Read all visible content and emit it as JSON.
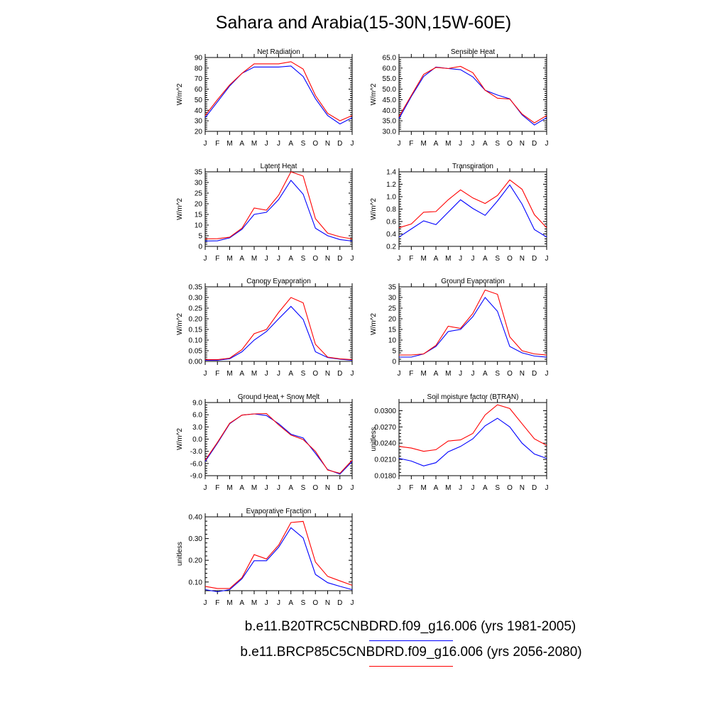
{
  "title": "Sahara and Arabia(15-30N,15W-60E)",
  "colors": {
    "series1": "#0000ff",
    "series2": "#ff0000",
    "axis": "#000000"
  },
  "legend": [
    {
      "label": "b.e11.B20TRC5CNBDRD.f09_g16.006 (yrs 1981-2005)",
      "color": "#0000ff"
    },
    {
      "label": "b.e11.BRCP85C5CNBDRD.f09_g16.006 (yrs 2056-2080)",
      "color": "#ff0000"
    }
  ],
  "chart_data": [
    {
      "type": "line",
      "title": "Net Radiation",
      "ylabel": "W/m^2",
      "categories": [
        "J",
        "F",
        "M",
        "A",
        "M",
        "J",
        "J",
        "A",
        "S",
        "O",
        "N",
        "D",
        "J"
      ],
      "ylim": [
        20,
        90
      ],
      "yticks": [
        "20",
        "30",
        "40",
        "50",
        "60",
        "70",
        "80",
        "90"
      ],
      "series": [
        {
          "values": [
            33,
            48,
            63,
            75,
            81,
            81,
            81,
            82,
            72,
            51,
            35,
            27,
            33
          ]
        },
        {
          "values": [
            35,
            50,
            64,
            75,
            84,
            84,
            84,
            86,
            79,
            54,
            37,
            30,
            35
          ]
        }
      ]
    },
    {
      "type": "line",
      "title": "Sensible Heat",
      "ylabel": "W/m^2",
      "categories": [
        "J",
        "F",
        "M",
        "A",
        "M",
        "J",
        "J",
        "A",
        "S",
        "O",
        "N",
        "D",
        "J"
      ],
      "ylim": [
        30,
        65
      ],
      "yticks": [
        "30.0",
        "35.0",
        "40.0",
        "45.0",
        "50.0",
        "55.0",
        "60.0",
        "65.0"
      ],
      "series": [
        {
          "values": [
            36.0,
            46.5,
            56.0,
            60.5,
            59.8,
            59.2,
            55.8,
            49.5,
            47.2,
            45.4,
            37.8,
            33.0,
            36.5
          ]
        },
        {
          "values": [
            37.0,
            47.0,
            57.0,
            60.3,
            59.8,
            60.8,
            57.8,
            49.5,
            45.7,
            45.3,
            38.2,
            34.0,
            37.5
          ]
        }
      ]
    },
    {
      "type": "line",
      "title": "Latent Heat",
      "ylabel": "W/m^2",
      "categories": [
        "J",
        "F",
        "M",
        "A",
        "M",
        "J",
        "J",
        "A",
        "S",
        "O",
        "N",
        "D",
        "J"
      ],
      "ylim": [
        0,
        35
      ],
      "yticks": [
        "0",
        "5",
        "10",
        "15",
        "20",
        "25",
        "30",
        "35"
      ],
      "series": [
        {
          "values": [
            2.5,
            2.6,
            4.0,
            8.0,
            15.0,
            16.0,
            22.0,
            31.0,
            24.5,
            8.5,
            5.0,
            3.2,
            2.5
          ]
        },
        {
          "values": [
            3.5,
            3.6,
            4.3,
            8.5,
            18.0,
            17.0,
            24.0,
            35.0,
            33.0,
            13.0,
            6.2,
            4.5,
            3.5
          ]
        }
      ]
    },
    {
      "type": "line",
      "title": "Transpiration",
      "ylabel": "W/m^2",
      "categories": [
        "J",
        "F",
        "M",
        "A",
        "M",
        "J",
        "J",
        "A",
        "S",
        "O",
        "N",
        "D",
        "J"
      ],
      "ylim": [
        0.2,
        1.4
      ],
      "yticks": [
        "0.2",
        "0.4",
        "0.6",
        "0.8",
        "1.0",
        "1.2",
        "1.4"
      ],
      "series": [
        {
          "values": [
            0.35,
            0.48,
            0.61,
            0.55,
            0.75,
            0.95,
            0.81,
            0.7,
            0.93,
            1.19,
            0.88,
            0.47,
            0.35
          ]
        },
        {
          "values": [
            0.5,
            0.56,
            0.75,
            0.76,
            0.95,
            1.11,
            0.98,
            0.89,
            1.02,
            1.27,
            1.12,
            0.71,
            0.5
          ]
        }
      ]
    },
    {
      "type": "line",
      "title": "Canopy Evaporation",
      "ylabel": "W/m^2",
      "categories": [
        "J",
        "F",
        "M",
        "A",
        "M",
        "J",
        "J",
        "A",
        "S",
        "O",
        "N",
        "D",
        "J"
      ],
      "ylim": [
        0,
        0.35
      ],
      "yticks": [
        "0.00",
        "0.05",
        "0.10",
        "0.15",
        "0.20",
        "0.25",
        "0.30",
        "0.35"
      ],
      "series": [
        {
          "values": [
            0.005,
            0.005,
            0.012,
            0.045,
            0.1,
            0.14,
            0.2,
            0.258,
            0.197,
            0.045,
            0.018,
            0.01,
            0.005
          ]
        },
        {
          "values": [
            0.008,
            0.008,
            0.015,
            0.055,
            0.13,
            0.15,
            0.23,
            0.3,
            0.275,
            0.08,
            0.02,
            0.012,
            0.008
          ]
        }
      ]
    },
    {
      "type": "line",
      "title": "Ground Evaporation",
      "ylabel": "W/m^2",
      "categories": [
        "J",
        "F",
        "M",
        "A",
        "M",
        "J",
        "J",
        "A",
        "S",
        "O",
        "N",
        "D",
        "J"
      ],
      "ylim": [
        0,
        35
      ],
      "yticks": [
        "0",
        "5",
        "10",
        "15",
        "20",
        "25",
        "30",
        "35"
      ],
      "series": [
        {
          "values": [
            2.0,
            2.0,
            3.5,
            7.0,
            14.0,
            15.0,
            21.0,
            30.0,
            23.5,
            7.0,
            4.0,
            2.5,
            2.0
          ]
        },
        {
          "values": [
            3.0,
            3.0,
            3.5,
            7.5,
            16.5,
            15.5,
            22.5,
            33.5,
            31.5,
            11.5,
            5.0,
            3.5,
            3.0
          ]
        }
      ]
    },
    {
      "type": "line",
      "title": "Ground Heat + Snow Melt",
      "ylabel": "W/m^2",
      "categories": [
        "J",
        "F",
        "M",
        "A",
        "M",
        "J",
        "J",
        "A",
        "S",
        "O",
        "N",
        "D",
        "J"
      ],
      "ylim": [
        -9,
        9
      ],
      "yticks": [
        "-9.0",
        "-6.0",
        "-3.0",
        "0.0",
        "3.0",
        "6.0",
        "9.0"
      ],
      "series": [
        {
          "values": [
            -5.5,
            -1.0,
            3.8,
            5.9,
            6.2,
            5.8,
            3.8,
            1.2,
            0.3,
            -3.5,
            -7.5,
            -8.6,
            -5.5
          ]
        },
        {
          "values": [
            -5.2,
            -0.8,
            3.9,
            5.9,
            6.2,
            6.3,
            3.5,
            1.0,
            -0.1,
            -3.0,
            -7.6,
            -8.4,
            -5.2
          ]
        }
      ]
    },
    {
      "type": "line",
      "title": "Soil moisture factor (BTRAN)",
      "ylabel": "unitless",
      "categories": [
        "J",
        "F",
        "M",
        "A",
        "M",
        "J",
        "J",
        "A",
        "S",
        "O",
        "N",
        "D",
        "J"
      ],
      "ylim": [
        0.018,
        0.0315
      ],
      "yticks": [
        "0.0180",
        "0.0210",
        "0.0240",
        "0.0270",
        "0.0300"
      ],
      "ytick_values": [
        0.018,
        0.021,
        0.024,
        0.027,
        0.03
      ],
      "series": [
        {
          "values": [
            0.0212,
            0.0207,
            0.0198,
            0.0204,
            0.0224,
            0.0234,
            0.0248,
            0.0272,
            0.0286,
            0.027,
            0.024,
            0.022,
            0.0212
          ]
        },
        {
          "values": [
            0.0234,
            0.0231,
            0.0225,
            0.0228,
            0.0244,
            0.0246,
            0.0258,
            0.0292,
            0.0311,
            0.0304,
            0.0276,
            0.0248,
            0.0236
          ]
        }
      ]
    },
    {
      "type": "line",
      "title": "Evaporative Fraction",
      "ylabel": "unitless",
      "categories": [
        "J",
        "F",
        "M",
        "A",
        "M",
        "J",
        "J",
        "A",
        "S",
        "O",
        "N",
        "D",
        "J"
      ],
      "ylim": [
        0.06,
        0.4
      ],
      "yticks": [
        "0.10",
        "0.20",
        "0.30",
        "0.40"
      ],
      "ytick_values": [
        0.1,
        0.2,
        0.3,
        0.4
      ],
      "series": [
        {
          "values": [
            0.065,
            0.055,
            0.065,
            0.115,
            0.198,
            0.198,
            0.26,
            0.35,
            0.303,
            0.135,
            0.097,
            0.08,
            0.065
          ]
        },
        {
          "values": [
            0.08,
            0.07,
            0.07,
            0.12,
            0.226,
            0.206,
            0.27,
            0.374,
            0.379,
            0.192,
            0.126,
            0.105,
            0.085
          ]
        }
      ]
    }
  ]
}
